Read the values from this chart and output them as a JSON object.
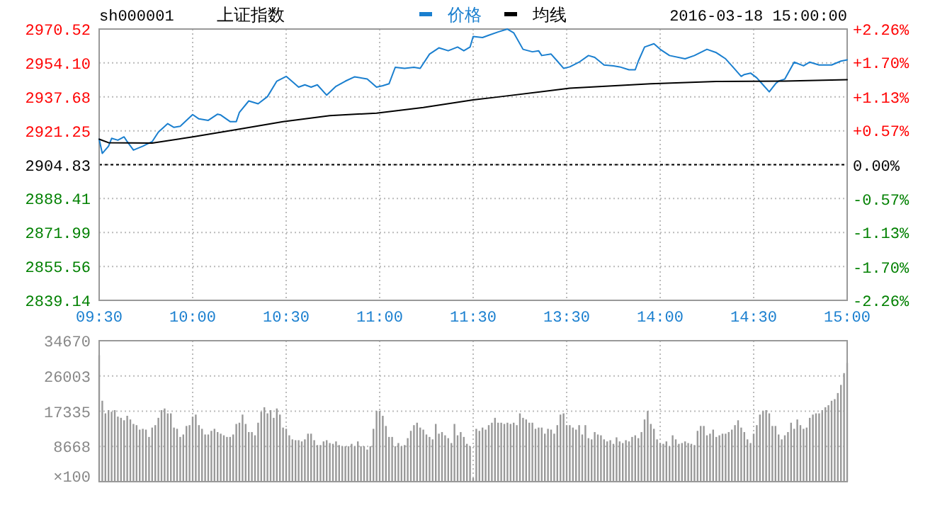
{
  "chart_data": [
    {
      "type": "line",
      "title": "上证指数",
      "subtitle": "sh000001",
      "annotations": [
        "2016-03-18 15:00:00"
      ],
      "legend": "top",
      "grid": true,
      "categories": [
        "09:30",
        null,
        null,
        null,
        null,
        null,
        null,
        null,
        null,
        null,
        null,
        null,
        null,
        null,
        null,
        null,
        null,
        null,
        null,
        null,
        null,
        null,
        null,
        null,
        null,
        null,
        null,
        null,
        null,
        null,
        "10:00",
        null,
        null,
        null,
        null,
        null,
        null,
        null,
        null,
        null,
        null,
        null,
        null,
        null,
        null,
        null,
        null,
        null,
        null,
        null,
        null,
        null,
        null,
        null,
        null,
        null,
        null,
        null,
        null,
        null,
        "10:30",
        null,
        null,
        null,
        null,
        null,
        null,
        null,
        null,
        null,
        null,
        null,
        null,
        null,
        null,
        null,
        null,
        null,
        null,
        null,
        null,
        null,
        null,
        null,
        null,
        null,
        null,
        null,
        null,
        null,
        "11:00",
        null,
        null,
        null,
        null,
        null,
        null,
        null,
        null,
        null,
        null,
        null,
        null,
        null,
        null,
        null,
        null,
        null,
        null,
        null,
        null,
        null,
        null,
        null,
        null,
        null,
        null,
        null,
        null,
        null,
        "11:30",
        null,
        null,
        null,
        null,
        null,
        null,
        null,
        null,
        null,
        null,
        null,
        null,
        null,
        null,
        null,
        null,
        null,
        null,
        null,
        null,
        null,
        null,
        null,
        null,
        null,
        null,
        null,
        null,
        null,
        "13:30",
        null,
        null,
        null,
        null,
        null,
        null,
        null,
        null,
        null,
        null,
        null,
        null,
        null,
        null,
        null,
        null,
        null,
        null,
        null,
        null,
        null,
        null,
        null,
        null,
        null,
        null,
        null,
        null,
        null,
        "14:00",
        null,
        null,
        null,
        null,
        null,
        null,
        null,
        null,
        null,
        null,
        null,
        null,
        null,
        null,
        null,
        null,
        null,
        null,
        null,
        null,
        null,
        null,
        null,
        null,
        null,
        null,
        null,
        null,
        null,
        "14:30",
        null,
        null,
        null,
        null,
        null,
        null,
        null,
        null,
        null,
        null,
        null,
        null,
        null,
        null,
        null,
        null,
        null,
        null,
        null,
        null,
        null,
        null,
        null,
        null,
        null,
        null,
        null,
        null,
        null,
        "15:00"
      ],
      "ylim": [
        2839.14,
        2970.52
      ],
      "yticks": [
        2839.14,
        2855.56,
        2871.99,
        2888.41,
        2904.83,
        2921.25,
        2937.68,
        {
          "value": 2954.1,
          "label": "2954.10"
        },
        2970.52
      ],
      "y2lim": [
        -2.26,
        2.26
      ],
      "y2ticks": [
        {
          "value": -2.26,
          "label": "-2.26%"
        },
        {
          "value": -1.7,
          "label": "-1.70%"
        },
        {
          "value": -1.13,
          "label": "-1.13%"
        },
        {
          "value": -0.57,
          "label": "-0.57%"
        },
        {
          "value": 0,
          "label": "0.00%"
        },
        {
          "value": 0.57,
          "label": "+0.57%"
        },
        {
          "value": 1.13,
          "label": "+1.13%"
        },
        {
          "value": 1.7,
          "label": "+1.70%"
        },
        {
          "value": 2.26,
          "label": "+2.26%"
        }
      ],
      "ref_lines": [
        {
          "axis": "y",
          "value": 2904.83,
          "color": "#000000",
          "line_style": "dashed"
        }
      ],
      "series": [
        {
          "name": "价格",
          "color": "#1a7fcf",
          "values": [
            2917.2,
            2910.3,
            null,
            2913.8,
            2917.6,
            null,
            2916.7,
            null,
            2918.3,
            2916.0,
            null,
            2911.9,
            null,
            null,
            2913.8,
            null,
            null,
            2916.0,
            null,
            2920.6,
            null,
            null,
            2924.7,
            null,
            2922.9,
            null,
            2923.4,
            null,
            null,
            null,
            2929.1,
            null,
            2927.0,
            null,
            null,
            2926.3,
            null,
            null,
            2929.3,
            2928.9,
            null,
            null,
            2925.7,
            null,
            2925.7,
            2930.2,
            null,
            null,
            2935.7,
            null,
            null,
            2934.3,
            null,
            null,
            2937.8,
            null,
            null,
            2945.3,
            null,
            null,
            2947.6,
            2946.3,
            null,
            null,
            2942.4,
            null,
            2943.5,
            null,
            2942.4,
            null,
            2943.5,
            null,
            null,
            2938.5,
            null,
            null,
            2942.8,
            null,
            null,
            2945.3,
            null,
            null,
            2947.4,
            null,
            null,
            null,
            2946.3,
            null,
            null,
            2942.4,
            null,
            2943.1,
            null,
            2944.0,
            null,
            2952.0,
            null,
            null,
            2951.5,
            null,
            null,
            2952.0,
            null,
            2951.5,
            null,
            null,
            2958.4,
            null,
            null,
            2961.4,
            null,
            null,
            2960.0,
            null,
            null,
            2961.8,
            null,
            2960.0,
            null,
            2961.8,
            2966.9,
            null,
            null,
            2966.4,
            null,
            2967.5,
            null,
            null,
            2969.1,
            null,
            null,
            2970.5,
            null,
            2968.7,
            null,
            null,
            2960.7,
            null,
            null,
            2959.5,
            null,
            2960.0,
            2957.7,
            null,
            null,
            2958.4,
            null,
            2955.0,
            null,
            2951.5,
            null,
            2952.2,
            null,
            null,
            2954.5,
            null,
            null,
            2957.7,
            null,
            2956.8,
            null,
            null,
            2953.1,
            null,
            null,
            2952.7,
            null,
            2952.2,
            null,
            null,
            2950.8,
            null,
            2950.8,
            2955.0,
            null,
            2961.8,
            null,
            null,
            2963.4,
            null,
            2960.7,
            null,
            null,
            2957.7,
            null,
            null,
            null,
            null,
            2956.1,
            null,
            null,
            2957.7,
            null,
            null,
            null,
            2960.7,
            null,
            null,
            2959.1,
            null,
            null,
            2956.1,
            null,
            2952.7,
            null,
            null,
            2947.6,
            2948.5,
            null,
            2949.2,
            null,
            2946.9,
            null,
            2943.5,
            null,
            2940.1,
            null,
            2944.0,
            2945.3,
            null,
            2946.3,
            null,
            null,
            2954.5,
            null,
            null,
            2952.7,
            null,
            2954.5,
            null,
            null,
            2953.1,
            null,
            null,
            null,
            2953.1,
            null,
            null,
            2955.0,
            null,
            2955.6
          ]
        },
        {
          "name": "均线",
          "color": "#000000",
          "values": [
            2917.2,
            null,
            null,
            2915.5,
            null,
            null,
            null,
            null,
            null,
            null,
            null,
            null,
            null,
            null,
            null,
            null,
            null,
            2915.3,
            null,
            null,
            null,
            null,
            null,
            null,
            null,
            null,
            null,
            null,
            null,
            null,
            2918.3,
            null,
            null,
            null,
            null,
            null,
            null,
            null,
            null,
            null,
            null,
            null,
            null,
            null,
            2921.8,
            null,
            null,
            null,
            null,
            null,
            null,
            null,
            null,
            null,
            null,
            null,
            null,
            null,
            null,
            2925.7,
            null,
            null,
            null,
            null,
            null,
            null,
            null,
            null,
            null,
            null,
            null,
            null,
            null,
            null,
            2928.6,
            null,
            null,
            null,
            null,
            null,
            null,
            null,
            null,
            null,
            null,
            null,
            null,
            null,
            null,
            2929.8,
            null,
            null,
            null,
            null,
            null,
            null,
            null,
            null,
            null,
            null,
            null,
            null,
            null,
            null,
            2932.5,
            null,
            null,
            null,
            null,
            null,
            null,
            null,
            null,
            null,
            null,
            null,
            null,
            null,
            null,
            null,
            2936.2,
            null,
            null,
            null,
            null,
            null,
            null,
            null,
            null,
            2937.8,
            null,
            null,
            null,
            null,
            null,
            null,
            null,
            null,
            null,
            null,
            null,
            null,
            null,
            null,
            null,
            null,
            null,
            null,
            null,
            null,
            null,
            2941.9,
            null,
            null,
            null,
            null,
            null,
            null,
            null,
            null,
            null,
            null,
            null,
            null,
            null,
            null,
            null,
            null,
            null,
            null,
            null,
            null,
            null,
            null,
            null,
            null,
            null,
            2944.0,
            null,
            null,
            null,
            null,
            null,
            null,
            null,
            null,
            null,
            null,
            null,
            null,
            null,
            null,
            null,
            null,
            null,
            null,
            null,
            null,
            2945.1,
            null,
            null,
            null,
            null,
            null,
            null,
            null,
            null,
            null,
            null,
            null,
            null,
            null,
            null,
            null,
            null,
            null,
            null,
            null,
            null,
            null,
            2945.3,
            null,
            null,
            null,
            null,
            null,
            null,
            null,
            null,
            null,
            null,
            null,
            null,
            null,
            null,
            null,
            null,
            null,
            null,
            null,
            2946.0
          ]
        }
      ]
    },
    {
      "type": "bar",
      "grid": true,
      "tick_labels": "y",
      "color": "#999999",
      "categories": [
        null,
        null,
        null,
        null,
        null,
        null,
        null,
        null,
        null,
        null,
        null,
        null,
        null,
        null,
        null,
        null,
        null,
        null,
        null,
        null,
        null,
        null,
        null,
        null,
        null,
        null,
        null,
        null,
        null,
        null,
        null,
        null,
        null,
        null,
        null,
        null,
        null,
        null,
        null,
        null,
        null,
        null,
        null,
        null,
        null,
        null,
        null,
        null,
        null,
        null,
        null,
        null,
        null,
        null,
        null,
        null,
        null,
        null,
        null,
        null,
        null,
        null,
        null,
        null,
        null,
        null,
        null,
        null,
        null,
        null,
        null,
        null,
        null,
        null,
        null,
        null,
        null,
        null,
        null,
        null,
        null,
        null,
        null,
        null,
        null,
        null,
        null,
        null,
        null,
        null,
        null,
        null,
        null,
        null,
        null,
        null,
        null,
        null,
        null,
        null,
        null,
        null,
        null,
        null,
        null,
        null,
        null,
        null,
        null,
        null,
        null,
        null,
        null,
        null,
        null,
        null,
        null,
        null,
        null,
        null,
        null,
        null,
        null,
        null,
        null,
        null,
        null,
        null,
        null,
        null,
        null,
        null,
        null,
        null,
        null,
        null,
        null,
        null,
        null,
        null,
        null,
        null,
        null,
        null,
        null,
        null,
        null,
        null,
        null,
        null,
        null,
        null,
        null,
        null,
        null,
        null,
        null,
        null,
        null,
        null,
        null,
        null,
        null,
        null,
        null,
        null,
        null,
        null,
        null,
        null,
        null,
        null,
        null,
        null,
        null,
        null,
        null,
        null,
        null,
        null,
        null,
        null,
        null,
        null,
        null,
        null,
        null,
        null,
        null,
        null,
        null,
        null,
        null,
        null,
        null,
        null,
        null,
        null,
        null,
        null,
        null,
        null,
        null,
        null,
        null,
        null,
        null,
        null,
        null,
        null,
        null,
        null,
        null,
        null,
        null,
        null,
        null,
        null,
        null,
        null,
        null,
        null,
        null,
        null,
        null,
        null,
        null,
        null,
        null,
        null,
        null,
        null,
        null,
        null,
        null,
        null,
        null,
        null,
        null,
        null,
        null
      ],
      "ylim": [
        0,
        34670
      ],
      "ylabel": "×100",
      "yticks": [
        {
          "value": 0,
          "label": null
        },
        8668,
        17335,
        26003,
        34670
      ],
      "values": [
        31100,
        19900,
        16800,
        17600,
        17200,
        17600,
        16000,
        15700,
        15100,
        16200,
        15300,
        14200,
        13900,
        12800,
        13000,
        12800,
        11000,
        13300,
        13900,
        15700,
        17600,
        18000,
        16800,
        16800,
        13300,
        13000,
        11000,
        11600,
        13700,
        13900,
        16000,
        16500,
        13900,
        13000,
        11600,
        11600,
        12500,
        13000,
        12200,
        11800,
        11400,
        11000,
        11000,
        11600,
        14200,
        14500,
        16500,
        14200,
        12200,
        12200,
        11400,
        14500,
        17200,
        18300,
        16800,
        17600,
        15700,
        18000,
        16500,
        13300,
        13000,
        11400,
        10400,
        10200,
        10200,
        9900,
        10400,
        11800,
        11800,
        10200,
        9000,
        9000,
        9900,
        10200,
        9500,
        9300,
        9900,
        9000,
        8700,
        8700,
        8700,
        9300,
        8700,
        9900,
        8700,
        8700,
        7900,
        8700,
        13000,
        17400,
        17400,
        16200,
        13700,
        11000,
        11000,
        8700,
        9500,
        8700,
        9000,
        10700,
        12500,
        13900,
        14500,
        13300,
        12800,
        11600,
        11000,
        10400,
        14200,
        11800,
        12200,
        11400,
        10700,
        9500,
        14200,
        11400,
        12200,
        11000,
        9300,
        8700,
        900,
        13000,
        12500,
        13300,
        12800,
        13900,
        14500,
        15700,
        14500,
        14500,
        14200,
        14500,
        14200,
        14500,
        13900,
        16800,
        15700,
        15300,
        14500,
        14500,
        13000,
        13300,
        13300,
        11800,
        13000,
        12800,
        11800,
        13900,
        16500,
        16800,
        13900,
        13900,
        13300,
        12800,
        13900,
        11600,
        13900,
        10700,
        10400,
        12200,
        11600,
        11400,
        10400,
        9900,
        10200,
        9300,
        10900,
        9900,
        9500,
        10200,
        9900,
        11000,
        11400,
        10700,
        12200,
        15300,
        17400,
        14200,
        13000,
        10400,
        9500,
        9300,
        9900,
        8700,
        11400,
        10400,
        9300,
        9500,
        9900,
        9500,
        9300,
        9000,
        12500,
        13700,
        13700,
        11400,
        11800,
        12800,
        11000,
        11400,
        11800,
        11800,
        12200,
        12800,
        13900,
        15100,
        13300,
        12200,
        10400,
        9500,
        11800,
        13900,
        16500,
        17400,
        17600,
        16800,
        13700,
        13700,
        11600,
        10400,
        11400,
        12200,
        14500,
        13000,
        15300,
        13900,
        13000,
        13300,
        15700,
        16500,
        16800,
        16800,
        17600,
        18300,
        18800,
        19900,
        20300,
        21800,
        23800,
        26700,
        29200
      ]
    }
  ]
}
